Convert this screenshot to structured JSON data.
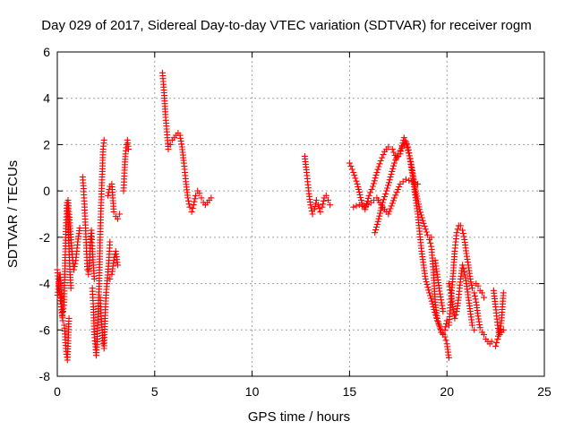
{
  "chart_data": {
    "type": "scatter",
    "title": "Day 029 of 2017, Sidereal Day-to-day VTEC variation (SDTVAR) for receiver rogm",
    "xlabel": "GPS time / hours",
    "ylabel": "SDTVAR / TECUs",
    "xlim": [
      0,
      25
    ],
    "ylim": [
      -8,
      6
    ],
    "xticks": [
      0,
      5,
      10,
      15,
      20,
      25
    ],
    "yticks": [
      -8,
      -6,
      -4,
      -2,
      0,
      2,
      4,
      6
    ],
    "xtick_labels": [
      "0",
      "5",
      "10",
      "15",
      "20",
      "25"
    ],
    "ytick_labels": [
      "-8",
      "-6",
      "-4",
      "-2",
      "0",
      "2",
      "4",
      "6"
    ],
    "grid": true,
    "marker": "+",
    "marker_color": "#ff0000",
    "series": [
      {
        "name": "SDTVAR",
        "segments": [
          {
            "x": [
              0.0,
              0.05,
              0.1,
              0.15,
              0.2,
              0.25,
              0.3,
              0.35,
              0.4,
              0.45,
              0.5,
              0.55,
              0.6,
              0.65,
              0.7
            ],
            "y": [
              -3.4,
              -3.8,
              -4.2,
              -4.6,
              -5.0,
              -5.4,
              -5.2,
              -4.8,
              -3.0,
              -1.5,
              -0.5,
              -1.2,
              -2.5,
              -3.5,
              -4.2
            ]
          },
          {
            "x": [
              0.02,
              0.08,
              0.14,
              0.2,
              0.28,
              0.36,
              0.44,
              0.52,
              0.6
            ],
            "y": [
              -4.5,
              -4.0,
              -3.6,
              -4.4,
              -5.6,
              -5.8,
              -6.8,
              -7.3,
              -5.5
            ]
          },
          {
            "x": [
              0.55,
              0.65,
              0.75,
              0.85,
              0.95,
              1.05,
              1.15
            ],
            "y": [
              -0.4,
              -1.5,
              -2.6,
              -3.4,
              -3.0,
              -2.2,
              -1.6
            ]
          },
          {
            "x": [
              1.3,
              1.35,
              1.4,
              1.45,
              1.5,
              1.55,
              1.6,
              1.65,
              1.7,
              1.75,
              1.8,
              1.85,
              1.9
            ],
            "y": [
              0.6,
              0.1,
              -0.7,
              -1.6,
              -2.6,
              -3.4,
              -3.6,
              -3.0,
              -2.2,
              -1.7,
              -2.5,
              -3.2,
              -3.8
            ]
          },
          {
            "x": [
              1.8,
              1.85,
              1.9,
              1.95,
              2.0,
              2.05,
              2.1,
              2.15,
              2.2,
              2.25,
              2.3,
              2.35,
              2.4
            ],
            "y": [
              -4.2,
              -5.0,
              -6.2,
              -6.6,
              -7.1,
              -6.4,
              -5.2,
              -4.0,
              -2.0,
              -0.5,
              0.6,
              1.8,
              2.2
            ]
          },
          {
            "x": [
              2.2,
              2.25,
              2.3,
              2.35,
              2.4,
              2.45,
              2.5,
              2.55,
              2.6,
              2.65,
              2.7
            ],
            "y": [
              -4.6,
              -5.4,
              -6.0,
              -6.6,
              -6.8,
              -5.5,
              -4.5,
              -4.0,
              -3.5,
              -3.0,
              -2.2
            ]
          },
          {
            "x": [
              2.6,
              2.7,
              2.8,
              2.9,
              3.0,
              3.1,
              3.2
            ],
            "y": [
              -0.2,
              0.2,
              0.3,
              -0.9,
              -1.1,
              -1.2,
              -1.0
            ]
          },
          {
            "x": [
              2.7,
              2.8,
              2.9,
              3.0,
              3.1
            ],
            "y": [
              -3.8,
              -3.6,
              -3.0,
              -2.6,
              -3.2
            ]
          },
          {
            "x": [
              3.4,
              3.45,
              3.5,
              3.55,
              3.6,
              3.65
            ],
            "y": [
              0.0,
              0.9,
              1.6,
              2.0,
              2.2,
              1.8
            ]
          },
          {
            "x": [
              5.4,
              5.45,
              5.5,
              5.55,
              5.6,
              5.65,
              5.7,
              5.8,
              5.9,
              6.0,
              6.1,
              6.2,
              6.3,
              6.4,
              6.5,
              6.6,
              6.7,
              6.8,
              6.9,
              7.0,
              7.1,
              7.2,
              7.3,
              7.4,
              7.5,
              7.6,
              7.7,
              7.8,
              7.9
            ],
            "y": [
              5.1,
              4.6,
              4.0,
              3.3,
              2.8,
              2.3,
              1.8,
              2.0,
              2.2,
              2.3,
              2.4,
              2.5,
              2.4,
              1.9,
              1.2,
              0.4,
              -0.3,
              -0.7,
              -0.9,
              -0.6,
              -0.2,
              0.0,
              -0.1,
              -0.3,
              -0.5,
              -0.6,
              -0.5,
              -0.4,
              -0.3
            ]
          },
          {
            "x": [
              12.7,
              12.8,
              12.9,
              13.0,
              13.1,
              13.2,
              13.3,
              13.4,
              13.5,
              13.6,
              13.7,
              13.8,
              13.9,
              14.0
            ],
            "y": [
              1.5,
              0.8,
              0.0,
              -0.6,
              -1.0,
              -0.8,
              -0.4,
              -0.6,
              -0.9,
              -0.7,
              -0.3,
              -0.2,
              -0.4,
              -0.6
            ]
          },
          {
            "x": [
              15.0,
              15.2,
              15.4,
              15.6,
              15.8,
              16.0,
              16.2,
              16.4,
              16.6,
              16.8,
              17.0,
              17.2,
              17.4,
              17.6,
              17.8,
              18.0,
              18.2,
              18.4,
              18.6,
              18.8,
              19.0,
              19.2
            ],
            "y": [
              1.2,
              0.8,
              0.3,
              -0.4,
              -0.8,
              -0.2,
              0.2,
              0.8,
              1.3,
              1.7,
              1.9,
              1.8,
              1.4,
              1.6,
              2.3,
              1.9,
              1.0,
              0.0,
              -0.8,
              -1.4,
              -1.9,
              -2.0
            ]
          },
          {
            "x": [
              15.2,
              15.5,
              15.8,
              16.1,
              16.4,
              16.7,
              17.0,
              17.3,
              17.6,
              17.9,
              18.2,
              18.5
            ],
            "y": [
              -0.7,
              -0.6,
              -0.7,
              -0.5,
              -0.3,
              -0.7,
              -1.0,
              -0.3,
              0.3,
              0.5,
              0.4,
              0.3
            ]
          },
          {
            "x": [
              16.3,
              16.5,
              16.7,
              16.9,
              17.1,
              17.3,
              17.5,
              17.7,
              17.9,
              18.1,
              18.3,
              18.5,
              18.7,
              18.9,
              19.1,
              19.3,
              19.5,
              19.7,
              19.9,
              20.0,
              20.1
            ],
            "y": [
              -1.8,
              -1.2,
              -0.5,
              0.0,
              0.6,
              1.2,
              1.6,
              1.9,
              2.1,
              1.4,
              0.3,
              -1.0,
              -2.6,
              -3.8,
              -4.4,
              -5.0,
              -5.6,
              -6.0,
              -6.3,
              -6.6,
              -7.2
            ]
          },
          {
            "x": [
              19.1,
              19.2,
              19.3,
              19.4,
              19.5,
              19.6,
              19.7,
              19.8,
              19.9,
              20.0
            ],
            "y": [
              -2.1,
              -2.4,
              -3.4,
              -4.8,
              -5.5,
              -5.8,
              -6.1,
              -6.2,
              -6.0,
              -5.6
            ]
          },
          {
            "x": [
              19.4,
              19.5,
              19.6,
              19.7,
              19.8
            ],
            "y": [
              -3.0,
              -3.6,
              -4.2,
              -4.7,
              -5.2
            ]
          },
          {
            "x": [
              20.1,
              20.2,
              20.3,
              20.4,
              20.5,
              20.6,
              20.7,
              20.8,
              20.9,
              21.0,
              21.1,
              21.2,
              21.3,
              21.4,
              21.5,
              21.6,
              21.7,
              21.8,
              21.9,
              22.0,
              22.1,
              22.2,
              22.3
            ],
            "y": [
              -5.8,
              -4.8,
              -3.8,
              -2.6,
              -1.8,
              -1.5,
              -1.5,
              -1.7,
              -2.1,
              -2.7,
              -3.2,
              -3.8,
              -4.2,
              -4.4,
              -4.8,
              -5.4,
              -5.9,
              -6.1,
              -6.2,
              -6.4,
              -6.5,
              -6.6,
              -6.5
            ]
          },
          {
            "x": [
              20.1,
              20.2,
              20.3,
              20.4,
              20.5,
              20.6,
              20.7,
              20.8,
              20.9,
              21.0,
              21.1,
              21.2,
              21.3,
              21.4
            ],
            "y": [
              -4.0,
              -4.4,
              -5.0,
              -5.5,
              -5.2,
              -4.6,
              -3.8,
              -3.2,
              -3.5,
              -4.0,
              -4.6,
              -5.2,
              -5.8,
              -6.0
            ]
          },
          {
            "x": [
              21.5,
              21.6,
              21.7,
              21.8,
              21.9
            ],
            "y": [
              -4.0,
              -4.1,
              -4.3,
              -4.4,
              -4.6
            ]
          },
          {
            "x": [
              22.4,
              22.5,
              22.6,
              22.7,
              22.8,
              22.9
            ],
            "y": [
              -4.3,
              -5.0,
              -5.8,
              -6.2,
              -5.6,
              -4.4
            ]
          },
          {
            "x": [
              22.5,
              22.6,
              22.7,
              22.8,
              22.9
            ],
            "y": [
              -6.7,
              -6.4,
              -6.0,
              -6.1,
              -6.0
            ]
          }
        ]
      }
    ]
  }
}
